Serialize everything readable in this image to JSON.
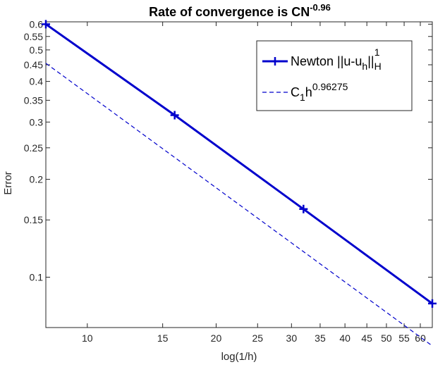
{
  "chart_data": {
    "type": "line",
    "title": {
      "text": "Rate of convergence is CN",
      "exponent": "-0.96"
    },
    "xlabel": "log(1/h)",
    "ylabel": "Error",
    "x_scale": "log",
    "y_scale": "log",
    "xlim": [
      8,
      64
    ],
    "ylim": [
      0.07,
      0.61
    ],
    "x_ticks": [
      {
        "value": 10,
        "label": "10"
      },
      {
        "value": 15,
        "label": "15"
      },
      {
        "value": 20,
        "label": "20"
      },
      {
        "value": 25,
        "label": "25"
      },
      {
        "value": 30,
        "label": "30"
      },
      {
        "value": 35,
        "label": "35"
      },
      {
        "value": 40,
        "label": "40"
      },
      {
        "value": 45,
        "label": "45"
      },
      {
        "value": 50,
        "label": "50"
      },
      {
        "value": 55,
        "label": "55"
      },
      {
        "value": 60,
        "label": "60"
      }
    ],
    "y_ticks": [
      {
        "value": 0.1,
        "label": "0.1"
      },
      {
        "value": 0.15,
        "label": "0.15"
      },
      {
        "value": 0.2,
        "label": "0.2"
      },
      {
        "value": 0.25,
        "label": "0.25"
      },
      {
        "value": 0.3,
        "label": "0.3"
      },
      {
        "value": 0.35,
        "label": "0.35"
      },
      {
        "value": 0.4,
        "label": "0.4"
      },
      {
        "value": 0.45,
        "label": "0.45"
      },
      {
        "value": 0.5,
        "label": "0.5"
      },
      {
        "value": 0.55,
        "label": "0.55"
      },
      {
        "value": 0.6,
        "label": "0.6"
      }
    ],
    "grid": false,
    "legend_position": "top-right",
    "series": [
      {
        "legend": {
          "main": "Newton ||u-u",
          "sub": "h",
          "mid": "||",
          "sub2": "H",
          "sup2": "1"
        },
        "style": "solid",
        "marker": "plus",
        "color": "#0000CC",
        "x": [
          8,
          16,
          32,
          64
        ],
        "y": [
          0.6,
          0.315,
          0.162,
          0.083
        ]
      },
      {
        "legend": {
          "main": "C",
          "sub": "1",
          "mid": "h",
          "sup": "0.96275"
        },
        "style": "dashed",
        "marker": "none",
        "color": "#0000CC",
        "x": [
          8,
          64
        ],
        "y": [
          0.455,
          0.0615
        ]
      }
    ]
  }
}
